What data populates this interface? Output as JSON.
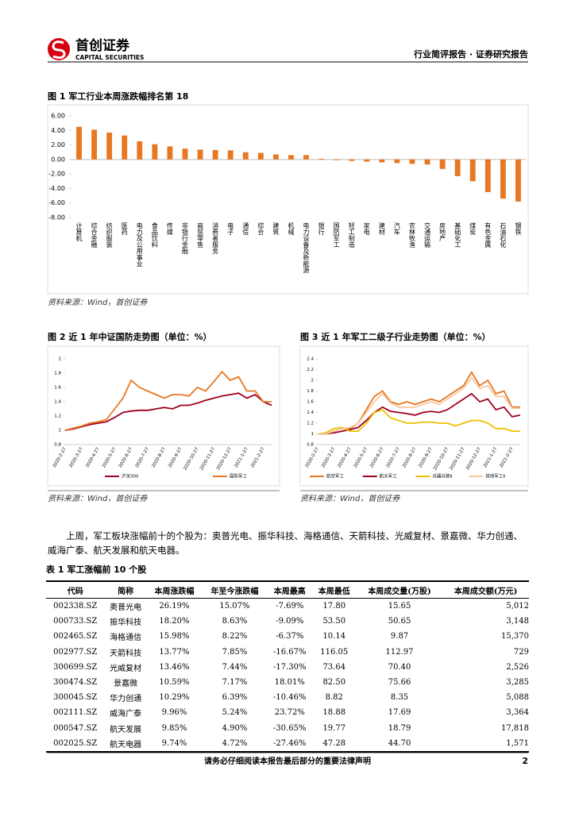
{
  "header": {
    "brand": "首创证券",
    "brand_en": "CAPITAL SECURITIES",
    "report_type": "行业简评报告 · 证券研究报告"
  },
  "fig1": {
    "caption": "图 1  军工行业本周涨跌幅排名第 18",
    "source": "资料来源：Wind，首创证券",
    "chart": {
      "type": "bar",
      "color": "#e87722",
      "categories": [
        "计算机",
        "综合金融",
        "纺织服装",
        "医药",
        "电力及公用事业",
        "食品饮料",
        "传媒",
        "非银行金融",
        "商贸零售",
        "消费者服务",
        "电子",
        "通信",
        "综合",
        "建筑",
        "机械",
        "电力设备及新能源",
        "银行",
        "国防军工",
        "轻工制造",
        "家电",
        "建材",
        "汽车",
        "农林牧渔",
        "交通运输",
        "房地产",
        "基础化工",
        "煤炭",
        "有色金属",
        "石油石化",
        "钢铁"
      ],
      "values": [
        4.5,
        4.1,
        3.7,
        3.3,
        2.5,
        2.1,
        1.8,
        1.5,
        1.35,
        1.3,
        1.25,
        1.0,
        0.9,
        0.7,
        0.6,
        0.6,
        0.1,
        -0.1,
        -0.2,
        -0.3,
        -0.4,
        -0.5,
        -0.6,
        -0.7,
        -1.3,
        -2.3,
        -3.0,
        -4.5,
        -5.4,
        -5.8
      ],
      "ylim": [
        -8,
        6
      ],
      "yticks": [
        {
          "value": 6,
          "label": "6.00"
        },
        {
          "value": 4,
          "label": "4.00"
        },
        {
          "value": 2,
          "label": "2.00"
        },
        {
          "value": 0,
          "label": "0.00"
        },
        {
          "value": -2,
          "label": "-2.00"
        },
        {
          "value": -4,
          "label": "-4.00"
        },
        {
          "value": -6,
          "label": "-6.00"
        },
        {
          "value": -8,
          "label": "-8.00"
        }
      ]
    }
  },
  "fig2": {
    "caption": "图 2  近 1 年中证国防走势图（单位：%）",
    "source": "资料来源：Wind，首创证券",
    "chart": {
      "type": "line",
      "categories": [
        "2020-2-27",
        null,
        "2020-3-27",
        null,
        "2020-4-27",
        null,
        "2020-5-27",
        null,
        "2020-6-27",
        null,
        "2020-7-27",
        null,
        "2020-8-27",
        null,
        "2020-9-27",
        null,
        "2020-10-27",
        null,
        "2020-11-27",
        null,
        "2020-12-27",
        null,
        "2021-1-27",
        null,
        "2021-2-27",
        null
      ],
      "ylim": [
        0.8,
        2
      ],
      "yticks": [
        0.8,
        1,
        1.2,
        1.4,
        1.6,
        1.8,
        2
      ],
      "series": [
        {
          "name": "沪深300",
          "color": "#a0001e",
          "values": [
            1.0,
            1.02,
            1.05,
            1.08,
            1.1,
            1.12,
            1.18,
            1.25,
            1.27,
            1.28,
            1.28,
            1.3,
            1.32,
            1.3,
            1.35,
            1.35,
            1.38,
            1.42,
            1.45,
            1.48,
            1.5,
            1.52,
            1.45,
            1.5,
            1.4,
            1.35
          ]
        },
        {
          "name": "国防军工",
          "color": "#e87722",
          "values": [
            1.0,
            1.03,
            1.06,
            1.1,
            1.12,
            1.15,
            1.3,
            1.45,
            1.7,
            1.6,
            1.55,
            1.5,
            1.45,
            1.5,
            1.5,
            1.48,
            1.6,
            1.55,
            1.68,
            1.82,
            1.7,
            1.75,
            1.55,
            1.55,
            1.4,
            1.4
          ]
        }
      ]
    }
  },
  "fig3": {
    "caption": "图 3  近 1 年军工二级子行业走势图（单位：%）",
    "source": "资料来源：Wind，首创证券",
    "chart": {
      "type": "line",
      "categories": [
        "2020-2-27",
        null,
        "2020-3-27",
        null,
        "2020-4-27",
        null,
        "2020-5-27",
        null,
        "2020-6-27",
        null,
        "2020-7-27",
        null,
        "2020-8-27",
        null,
        "2020-9-27",
        null,
        "2020-10-27",
        null,
        "2020-11-27",
        null,
        "2020-12-27",
        null,
        "2021-1-27",
        null,
        "2021-2-27",
        null
      ],
      "ylim": [
        0.8,
        2.4
      ],
      "yticks": [
        0.8,
        1,
        1.2,
        1.4,
        1.6,
        1.8,
        2,
        2.2,
        2.4
      ],
      "series": [
        {
          "name": "航空军工",
          "color": "#e87722",
          "values": [
            1.0,
            1.0,
            1.05,
            1.1,
            1.1,
            1.2,
            1.45,
            1.7,
            1.8,
            1.6,
            1.55,
            1.6,
            1.55,
            1.6,
            1.65,
            1.6,
            1.7,
            1.8,
            1.9,
            2.15,
            1.9,
            2.0,
            1.75,
            1.8,
            1.5,
            1.5
          ]
        },
        {
          "name": "航天军工",
          "color": "#a0001e",
          "values": [
            1.0,
            1.0,
            1.02,
            1.05,
            1.08,
            1.12,
            1.25,
            1.4,
            1.5,
            1.42,
            1.4,
            1.38,
            1.35,
            1.4,
            1.42,
            1.4,
            1.45,
            1.55,
            1.65,
            1.75,
            1.6,
            1.65,
            1.45,
            1.5,
            1.32,
            1.35
          ]
        },
        {
          "name": "兵器兵装Ⅱ",
          "color": "#f0c000",
          "values": [
            1.0,
            1.02,
            1.1,
            1.12,
            1.05,
            1.05,
            1.2,
            1.4,
            1.45,
            1.3,
            1.25,
            1.2,
            1.2,
            1.22,
            1.22,
            1.2,
            1.2,
            1.15,
            1.2,
            1.25,
            1.25,
            1.2,
            1.1,
            1.1,
            1.05,
            1.05
          ]
        },
        {
          "name": "其他军工Ⅱ",
          "color": "#f5c9a0",
          "values": [
            1.0,
            1.0,
            1.05,
            1.1,
            1.12,
            1.2,
            1.4,
            1.6,
            1.75,
            1.58,
            1.5,
            1.5,
            1.5,
            1.55,
            1.6,
            1.55,
            1.65,
            1.75,
            1.85,
            2.05,
            1.85,
            1.9,
            1.7,
            1.7,
            1.48,
            1.48
          ]
        }
      ]
    }
  },
  "paragraph": "上周，军工板块涨幅前十的个股为：奥普光电、振华科技、海格通信、天箭科技、光威复材、景嘉微、华力创通、威海广泰、航天发展和航天电器。",
  "table": {
    "caption": "表 1  军工涨幅前 10 个股",
    "headers": [
      "代码",
      "简称",
      "本周涨跌幅",
      "年至今涨跌幅",
      "本周最高",
      "本周最低",
      "本周成交量(万股)",
      "本周成交额(万元)"
    ],
    "rows": [
      [
        "002338.SZ",
        "奥普光电",
        "26.19%",
        "15.07%",
        "-7.69%",
        "17.80",
        "15.65",
        "5,012"
      ],
      [
        "000733.SZ",
        "振华科技",
        "18.20%",
        "8.63%",
        "-9.09%",
        "53.50",
        "50.65",
        "3,148"
      ],
      [
        "002465.SZ",
        "海格通信",
        "15.98%",
        "8.22%",
        "-6.37%",
        "10.14",
        "9.87",
        "15,370"
      ],
      [
        "002977.SZ",
        "天箭科技",
        "13.77%",
        "7.85%",
        "-16.67%",
        "116.05",
        "112.97",
        "729"
      ],
      [
        "300699.SZ",
        "光威复材",
        "13.46%",
        "7.44%",
        "-17.30%",
        "73.64",
        "70.40",
        "2,526"
      ],
      [
        "300474.SZ",
        "景嘉微",
        "10.59%",
        "7.17%",
        "18.01%",
        "82.50",
        "75.66",
        "3,285"
      ],
      [
        "300045.SZ",
        "华力创通",
        "10.29%",
        "6.39%",
        "-10.46%",
        "8.82",
        "8.35",
        "5,088"
      ],
      [
        "002111.SZ",
        "威海广泰",
        "9.96%",
        "5.24%",
        "23.72%",
        "18.88",
        "17.69",
        "3,364"
      ],
      [
        "000547.SZ",
        "航天发展",
        "9.85%",
        "4.90%",
        "-30.65%",
        "19.77",
        "18.79",
        "17,818"
      ],
      [
        "002025.SZ",
        "航天电器",
        "9.74%",
        "4.72%",
        "-27.46%",
        "47.28",
        "44.70",
        "1,571"
      ]
    ]
  },
  "footer": {
    "notice": "请务必仔细阅读本报告最后部分的重要法律声明",
    "page": "2"
  }
}
